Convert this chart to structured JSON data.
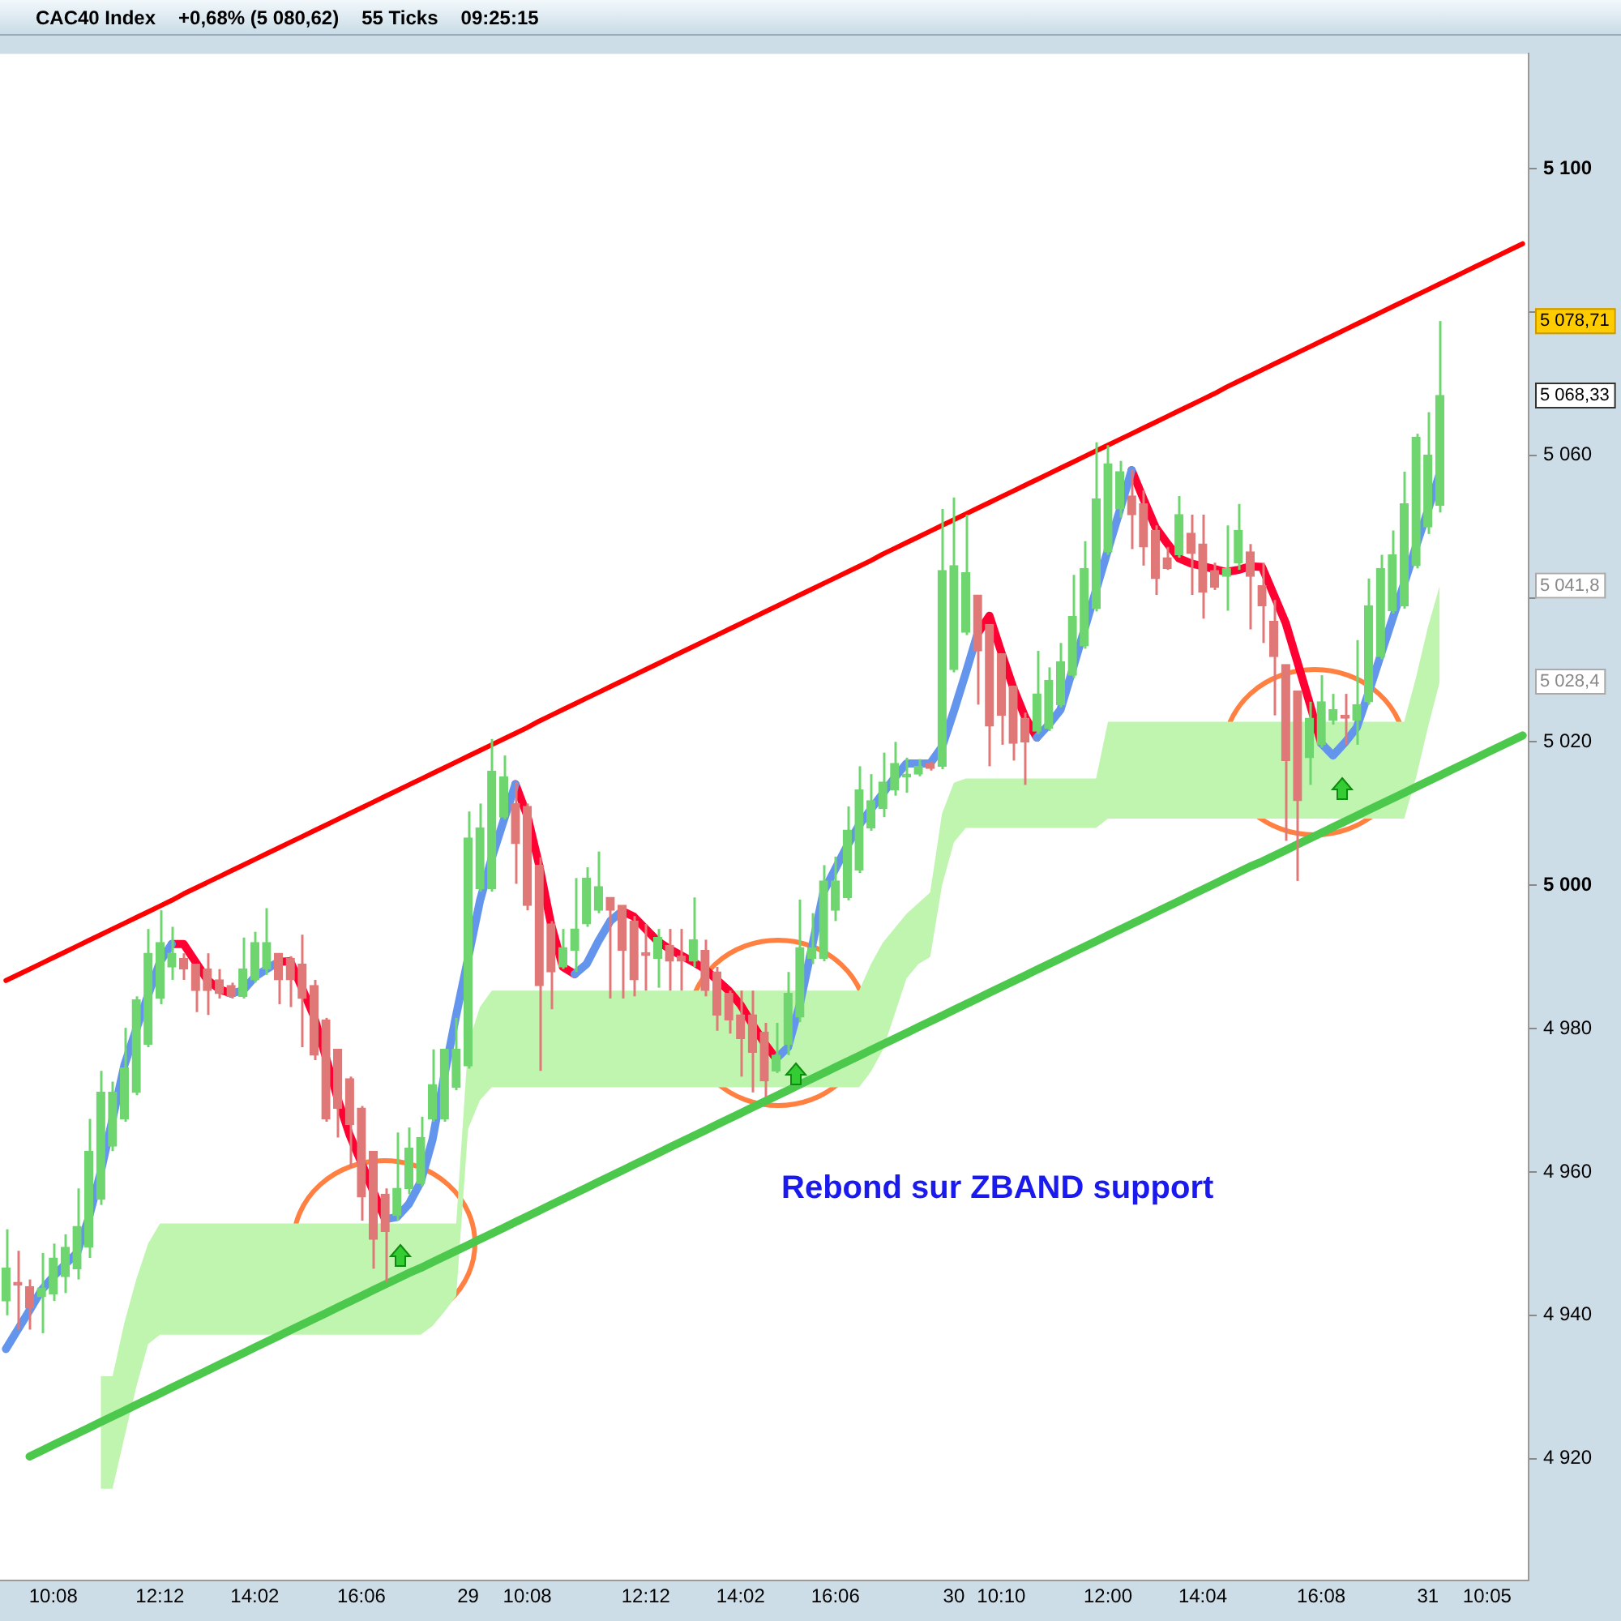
{
  "chart_data": {
    "type": "candlestick",
    "title": "CAC40 Index",
    "subtitle": "+0,68% (5 080,62)",
    "annotations": [
      "55 Ticks",
      "09:25:15",
      "Rebond sur ZBAND support",
      "5 078,71",
      "5 068,33",
      "5 041,8",
      "5 028,4"
    ],
    "categories": [
      null,
      null,
      null,
      null,
      "10:08",
      null,
      null,
      null,
      null,
      null,
      null,
      null,
      null,
      "12:12",
      null,
      null,
      null,
      null,
      null,
      null,
      null,
      "14:02",
      null,
      null,
      null,
      null,
      null,
      null,
      null,
      null,
      "16:06",
      null,
      null,
      null,
      null,
      null,
      null,
      null,
      null,
      "29",
      null,
      null,
      null,
      null,
      "10:08",
      null,
      null,
      null,
      null,
      null,
      null,
      null,
      null,
      null,
      "12:12",
      null,
      null,
      null,
      null,
      null,
      null,
      null,
      "14:02",
      null,
      null,
      null,
      null,
      null,
      null,
      null,
      "16:06",
      null,
      null,
      null,
      null,
      null,
      null,
      null,
      null,
      null,
      "30",
      null,
      null,
      null,
      "10:10",
      null,
      null,
      null,
      null,
      null,
      null,
      null,
      null,
      "12:00",
      null,
      null,
      null,
      null,
      null,
      null,
      null,
      "14:04",
      null,
      null,
      null,
      null,
      null,
      null,
      null,
      null,
      null,
      "16:08",
      null,
      null,
      null,
      null,
      null,
      null,
      null,
      null,
      "31",
      null,
      null,
      null,
      null,
      "10:05",
      null,
      null,
      null
    ],
    "ohlc": [
      [
        4942,
        4952,
        4940,
        4946.6
      ],
      [
        4944.6,
        4949,
        4938,
        4944.2
      ],
      [
        4944,
        4945,
        4938,
        4941
      ],
      [
        4942.6,
        4948.7,
        4937.5,
        4943.8
      ],
      [
        4943,
        4950,
        4942,
        4948
      ],
      [
        4945.4,
        4951.3,
        4943.1,
        4949.5
      ],
      [
        4946.5,
        4957.7,
        4945,
        4952.4
      ],
      [
        4949.5,
        4967.4,
        4948,
        4962.9
      ],
      [
        4956.2,
        4974.1,
        4955.4,
        4971.1
      ],
      [
        4963.6,
        4972.6,
        4962.9,
        4971.1
      ],
      [
        4967.4,
        4980.1,
        4967,
        4974.5
      ],
      [
        4971.1,
        4984.5,
        4970.7,
        4984
      ],
      [
        4977.8,
        4993.9,
        4977.4,
        4990.5
      ],
      [
        4984.2,
        4996.5,
        4983.4,
        4992
      ],
      [
        4988.6,
        4994.2,
        4986.8,
        4990.5
      ],
      [
        4989.8,
        4990.5,
        4986.8,
        4988.3
      ],
      [
        4989,
        4989,
        4982.3,
        4985.3
      ],
      [
        4988.3,
        4990.5,
        4981.9,
        4985.3
      ],
      [
        4986.8,
        4988.3,
        4984.2,
        4984.9
      ],
      [
        4986,
        4986.4,
        4984.2,
        4984.5
      ],
      [
        4984.5,
        4992.7,
        4984.2,
        4988.3
      ],
      [
        4986.8,
        4993.5,
        4986.4,
        4992
      ],
      [
        4988.3,
        4996.8,
        4987.5,
        4992
      ],
      [
        4990.5,
        4990.5,
        4983.4,
        4986.8
      ],
      [
        4989.8,
        4990.1,
        4983,
        4986.8
      ],
      [
        4989,
        4993.1,
        4977.4,
        4984.2
      ],
      [
        4986,
        4986.8,
        4975.6,
        4976.3
      ],
      [
        4981.2,
        4981.5,
        4967,
        4967.4
      ],
      [
        4977.1,
        4977.1,
        4964.8,
        4968.9
      ],
      [
        4973,
        4973.3,
        4960.6,
        4966.6
      ],
      [
        4968.9,
        4969.2,
        4953.2,
        4956.5
      ],
      [
        4962.9,
        4962.9,
        4946.5,
        4950.6
      ],
      [
        4956.9,
        4957.7,
        4944.6,
        4951.7
      ],
      [
        4953.9,
        4965.5,
        4953.2,
        4957.7
      ],
      [
        4957.7,
        4966.2,
        4956.9,
        4963.3
      ],
      [
        4958.4,
        4967.7,
        4958,
        4964.8
      ],
      [
        4967.4,
        4977.1,
        4967,
        4972.2
      ],
      [
        4967.4,
        4977.1,
        4967,
        4977.1
      ],
      [
        4971.8,
        4981.5,
        4971.4,
        4977.1
      ],
      [
        4974.8,
        5010.3,
        4974.4,
        5006.6
      ],
      [
        4999.5,
        5011.4,
        4999.1,
        5008
      ],
      [
        4999.5,
        5020.4,
        4999.1,
        5015.9
      ],
      [
        5009.5,
        5018.1,
        5009.2,
        5015.1
      ],
      [
        5011.4,
        5014.4,
        5000.2,
        5005.8
      ],
      [
        5011,
        5011.4,
        4996.5,
        4997.2
      ],
      [
        5002.8,
        5003.9,
        4974.1,
        4986
      ],
      [
        4994.6,
        4995,
        4982.7,
        4987.9
      ],
      [
        4988.6,
        4993.9,
        4988.3,
        4991.3
      ],
      [
        4990.9,
        5001,
        4987.9,
        4993.9
      ],
      [
        4994.6,
        5002.5,
        4994.2,
        5001
      ],
      [
        4996.5,
        5004.7,
        4996.1,
        4999.8
      ],
      [
        4998.3,
        4998.3,
        4984.2,
        4996.5
      ],
      [
        4997.2,
        4997.2,
        4984.2,
        4990.9
      ],
      [
        4995,
        4995.7,
        4984.5,
        4986.8
      ],
      [
        4990.6,
        4994.6,
        4985.3,
        4990.2
      ],
      [
        4989.8,
        4993.9,
        4985.7,
        4992.7
      ],
      [
        4991.6,
        4993.9,
        4985.3,
        4989.4
      ],
      [
        4990.1,
        4993.9,
        4985.3,
        4989.4
      ],
      [
        4989.4,
        4998.3,
        4988.6,
        4992.4
      ],
      [
        4990.9,
        4992.4,
        4984.5,
        4985.3
      ],
      [
        4987.9,
        4988.6,
        4979.7,
        4981.9
      ],
      [
        4984.9,
        4985.3,
        4979.3,
        4981.2
      ],
      [
        4981.9,
        4985.3,
        4973.3,
        4978.6
      ],
      [
        4981.9,
        4985.3,
        4971.1,
        4976.7
      ],
      [
        4979.5,
        4980.8,
        4970.4,
        4972.7
      ],
      [
        4974.1,
        4980.8,
        4973.8,
        4976.3
      ],
      [
        4977.8,
        4987.9,
        4976.3,
        4984.9
      ],
      [
        4981.6,
        4998,
        4980.9,
        4991.3
      ],
      [
        4989.8,
        4996.1,
        4989,
        4991.3
      ],
      [
        4989.8,
        5002.8,
        4989.4,
        5000.6
      ],
      [
        4996.5,
        5004,
        4995,
        5000.6
      ],
      [
        4998.3,
        5011,
        4997.9,
        5007.7
      ],
      [
        5002.1,
        5016.6,
        5001.7,
        5013.3
      ],
      [
        5008,
        5015.5,
        5007.6,
        5011.8
      ],
      [
        5010.7,
        5018.5,
        5009.5,
        5014.4
      ],
      [
        5013.3,
        5020,
        5012.5,
        5017
      ],
      [
        5015.1,
        5017.8,
        5012.9,
        5015.5
      ],
      [
        5015.5,
        5017.6,
        5015.2,
        5016.6
      ],
      [
        5017,
        5017.2,
        5016,
        5016.3
      ],
      [
        5016.6,
        5052.5,
        5016.2,
        5043.9
      ],
      [
        5030.1,
        5054.1,
        5029.7,
        5044.6
      ],
      [
        5035.3,
        5051.7,
        5034.9,
        5043.6
      ],
      [
        5040.5,
        5040.5,
        5025.2,
        5032.7
      ],
      [
        5036.4,
        5036.4,
        5016.6,
        5022.2
      ],
      [
        5032.3,
        5032.3,
        5019.6,
        5023.7
      ],
      [
        5027.8,
        5027.8,
        5017.4,
        5019.8
      ],
      [
        5023.3,
        5024.1,
        5014,
        5020
      ],
      [
        5021.5,
        5032.7,
        5021.1,
        5026.7
      ],
      [
        5021.9,
        5030.4,
        5021.5,
        5028.6
      ],
      [
        5025.2,
        5033.8,
        5024.8,
        5031.2
      ],
      [
        5029.3,
        5043.3,
        5028.9,
        5037.5
      ],
      [
        5033.4,
        5048,
        5033,
        5044.2
      ],
      [
        5038.6,
        5061.8,
        5038.2,
        5053.9
      ],
      [
        5046.5,
        5061.4,
        5046.1,
        5058.8
      ],
      [
        5052.5,
        5059.2,
        5051.3,
        5057.7
      ],
      [
        5054.3,
        5058,
        5046.9,
        5051.7
      ],
      [
        5053.2,
        5055.1,
        5044.6,
        5047.2
      ],
      [
        5049.5,
        5050.2,
        5040.5,
        5042.8
      ],
      [
        5045.7,
        5047.2,
        5044,
        5044.2
      ],
      [
        5046.1,
        5054.3,
        5045.7,
        5051.7
      ],
      [
        5049.1,
        5051.7,
        5040.5,
        5046.3
      ],
      [
        5047.6,
        5051.7,
        5037.2,
        5040.9
      ],
      [
        5043.9,
        5045,
        5041.2,
        5041.6
      ],
      [
        5043.1,
        5050.2,
        5038.3,
        5044.2
      ],
      [
        5045,
        5053.2,
        5044,
        5049.5
      ],
      [
        5046.5,
        5047.6,
        5035.7,
        5043.1
      ],
      [
        5041.8,
        5045,
        5033.8,
        5039
      ],
      [
        5036.8,
        5039.8,
        5023.7,
        5031.9
      ],
      [
        5030.8,
        5030.8,
        5006.2,
        5017.4
      ],
      [
        5027.1,
        5027.1,
        5000.6,
        5011.8
      ],
      [
        5017.8,
        5025.6,
        5014,
        5023.3
      ],
      [
        5019.6,
        5029.3,
        5019.2,
        5025.6
      ],
      [
        5023,
        5026.7,
        5022.4,
        5024.5
      ],
      [
        5023.7,
        5026.7,
        5019.6,
        5023.3
      ],
      [
        5023,
        5034.2,
        5019.6,
        5025.2
      ],
      [
        5025.6,
        5042.8,
        5025.2,
        5039
      ],
      [
        5031.9,
        5046.1,
        5031.5,
        5044.2
      ],
      [
        5038.3,
        5049.5,
        5037.9,
        5046.1
      ],
      [
        5039,
        5057.7,
        5038.6,
        5053.2
      ],
      [
        5044.6,
        5063,
        5044.2,
        5062.5
      ],
      [
        5050,
        5066,
        5049,
        5060
      ],
      [
        5053,
        5078.71,
        5052,
        5068.33
      ],
      null,
      null,
      null,
      null,
      null,
      null,
      null
    ],
    "colors": [
      "#6fd66f",
      "#e07878",
      "#e07878",
      "#6fd66f",
      "#6fd66f",
      "#6fd66f",
      "#6fd66f",
      "#6fd66f",
      "#6fd66f",
      "#6fd66f",
      "#6fd66f",
      "#6fd66f",
      "#6fd66f",
      "#6fd66f",
      "#6fd66f",
      "#e07878",
      "#e07878",
      "#e07878",
      "#e07878",
      "#e07878",
      "#6fd66f",
      "#6fd66f",
      "#6fd66f",
      "#e07878",
      "#e07878",
      "#e07878",
      "#e07878",
      "#e07878",
      "#e07878",
      "#e07878",
      "#e07878",
      "#e07878",
      "#e07878",
      "#6fd66f",
      "#6fd66f",
      "#6fd66f",
      "#6fd66f",
      "#6fd66f",
      "#6fd66f",
      "#6fd66f",
      "#6fd66f",
      "#6fd66f",
      "#6fd66f",
      "#e07878",
      "#e07878",
      "#e07878",
      "#e07878",
      "#6fd66f",
      "#6fd66f",
      "#6fd66f",
      "#6fd66f",
      "#e07878",
      "#e07878",
      "#e07878",
      "#e07878",
      "#6fd66f",
      "#e07878",
      "#e07878",
      "#6fd66f",
      "#e07878",
      "#e07878",
      "#e07878",
      "#e07878",
      "#e07878",
      "#e07878",
      "#6fd66f",
      "#6fd66f",
      "#6fd66f",
      "#6fd66f",
      "#6fd66f",
      "#6fd66f",
      "#6fd66f",
      "#6fd66f",
      "#6fd66f",
      "#6fd66f",
      "#6fd66f",
      "#6fd66f",
      "#6fd66f",
      "#e07878",
      "#6fd66f",
      "#6fd66f",
      "#6fd66f",
      "#e07878",
      "#e07878",
      "#e07878",
      "#e07878",
      "#e07878",
      "#6fd66f",
      "#6fd66f",
      "#6fd66f",
      "#6fd66f",
      "#6fd66f",
      "#6fd66f",
      "#6fd66f",
      "#6fd66f",
      "#e07878",
      "#e07878",
      "#e07878",
      "#e07878",
      "#6fd66f",
      "#e07878",
      "#e07878",
      "#e07878",
      "#6fd66f",
      "#6fd66f",
      "#e07878",
      "#e07878",
      "#e07878",
      "#e07878",
      "#e07878",
      "#6fd66f",
      "#6fd66f",
      "#6fd66f",
      "#e07878",
      "#6fd66f",
      "#6fd66f",
      "#6fd66f",
      "#6fd66f",
      "#6fd66f",
      "#6fd66f",
      "#6fd66f",
      "#6fd66f",
      null,
      null,
      null,
      null,
      null,
      null,
      null
    ],
    "series": [
      {
        "type": "area",
        "color": "#c0f5b0",
        "values": [
          null,
          null,
          null,
          null,
          null,
          null,
          null,
          null,
          null,
          null,
          null,
          null,
          null,
          null,
          null,
          null,
          null,
          null,
          null,
          null,
          null,
          null,
          null,
          null,
          null,
          null,
          null,
          null,
          null,
          null,
          null,
          null,
          null,
          null,
          null,
          null,
          null,
          null,
          null,
          null,
          null,
          null,
          null,
          null,
          null,
          null,
          null,
          null,
          null,
          null,
          null,
          null,
          null,
          null,
          null,
          null,
          null,
          null,
          null,
          null,
          null,
          null,
          null,
          null,
          null,
          null,
          null,
          null,
          null,
          null,
          null,
          null,
          null,
          null,
          null,
          null,
          null,
          null,
          null,
          null,
          null,
          null,
          null,
          null,
          null,
          null,
          null,
          null,
          null,
          null,
          null,
          null,
          null,
          null,
          null,
          null,
          null,
          null,
          null,
          null,
          null,
          null,
          null,
          null,
          null,
          null,
          null,
          null,
          null,
          null,
          null,
          null,
          null,
          null,
          null,
          null,
          null,
          null,
          null,
          null,
          null,
          null,
          null,
          null,
          null,
          null,
          null,
          null,
          null
        ],
        "lower": [
          null,
          null,
          null,
          null,
          null,
          null,
          null,
          null,
          4915.8,
          4915.8,
          4923,
          4930,
          4936,
          4937.3,
          4937.3,
          4937.3,
          4937.3,
          4937.3,
          4937.3,
          4937.3,
          4937.3,
          4937.3,
          4937.3,
          4937.3,
          4937.3,
          4937.3,
          4937.3,
          4937.3,
          4937.3,
          4937.3,
          4937.3,
          4937.3,
          4937.3,
          4937.3,
          4937.3,
          4937.3,
          4938.5,
          4940.5,
          4942.7,
          4966,
          4970,
          4971.8,
          4971.8,
          4971.8,
          4971.8,
          4971.8,
          4971.8,
          4971.8,
          4971.8,
          4971.8,
          4971.8,
          4971.8,
          4971.8,
          4971.8,
          4971.8,
          4971.8,
          4971.8,
          4971.8,
          4971.8,
          4971.8,
          4971.8,
          4971.8,
          4971.8,
          4971.8,
          4971.8,
          4971.8,
          4971.8,
          4971.8,
          4971.8,
          4971.8,
          4971.8,
          4971.8,
          4971.8,
          4974,
          4977,
          4982,
          4987,
          4989,
          4990,
          5000,
          5006,
          5008,
          5008,
          5008,
          5008,
          5008,
          5008,
          5008,
          5008,
          5008,
          5008,
          5008,
          5008,
          5009.3,
          5009.3,
          5009.3,
          5009.3,
          5009.3,
          5009.3,
          5009.3,
          5009.3,
          5009.3,
          5009.3,
          5009.3,
          5009.3,
          5009.3,
          5009.3,
          5009.3,
          5009.3,
          5009.3,
          5009.3,
          5009.3,
          5009.3,
          5009.3,
          5009.3,
          5009.3,
          5009.3,
          5009.3,
          5009.3,
          5015,
          5022,
          5028.4,
          null,
          null,
          null,
          null,
          null,
          null,
          null
        ],
        "upper": [
          null,
          null,
          null,
          null,
          null,
          null,
          null,
          null,
          4931.5,
          4931.5,
          4939,
          4945,
          4950,
          4952.8,
          4952.8,
          4952.8,
          4952.8,
          4952.8,
          4952.8,
          4952.8,
          4952.8,
          4952.8,
          4952.8,
          4952.8,
          4952.8,
          4952.8,
          4952.8,
          4952.8,
          4952.8,
          4952.8,
          4952.8,
          4952.8,
          4952.8,
          4952.8,
          4952.8,
          4952.8,
          4952.8,
          4952.8,
          4952.8,
          4977.8,
          4983,
          4985.3,
          4985.3,
          4985.3,
          4985.3,
          4985.3,
          4985.3,
          4985.3,
          4985.3,
          4985.3,
          4985.3,
          4985.3,
          4985.3,
          4985.3,
          4985.3,
          4985.3,
          4985.3,
          4985.3,
          4985.3,
          4985.3,
          4985.3,
          4985.3,
          4985.3,
          4985.3,
          4985.3,
          4985.3,
          4985.3,
          4985.3,
          4985.3,
          4985.3,
          4985.3,
          4985.3,
          4985.3,
          4989,
          4992,
          4994,
          4996,
          4997.5,
          4999,
          5010,
          5014.3,
          5014.9,
          5014.9,
          5014.9,
          5014.9,
          5014.9,
          5014.9,
          5014.9,
          5014.9,
          5014.9,
          5014.9,
          5014.9,
          5014.9,
          5022.8,
          5022.8,
          5022.8,
          5022.8,
          5022.8,
          5022.8,
          5022.8,
          5022.8,
          5022.8,
          5022.8,
          5022.8,
          5022.8,
          5022.8,
          5022.8,
          5022.8,
          5022.8,
          5022.8,
          5022.8,
          5022.8,
          5022.8,
          5022.8,
          5022.8,
          5022.8,
          5022.8,
          5022.8,
          5022.8,
          5029,
          5036,
          5041.8,
          null,
          null,
          null,
          null,
          null,
          null,
          null
        ]
      },
      {
        "type": "line",
        "color": "#ff0000",
        "values": [
          4986.7,
          4987.5,
          4988.3,
          4989.1,
          4989.9,
          4990.7,
          4991.5,
          4992.3,
          4993.1,
          4993.9,
          4994.7,
          4995.5,
          4996.3,
          4997.1,
          4997.9,
          4998.8,
          4999.6,
          5000.4,
          5001.2,
          5002,
          5002.8,
          5003.6,
          5004.4,
          5005.2,
          5006,
          5006.8,
          5007.6,
          5008.4,
          5009.2,
          5010,
          5010.8,
          5011.6,
          5012.4,
          5013.2,
          5014,
          5014.8,
          5015.6,
          5016.4,
          5017.2,
          5018,
          5018.8,
          5019.6,
          5020.4,
          5021.2,
          5022,
          5022.9,
          5023.7,
          5024.5,
          5025.3,
          5026.1,
          5026.9,
          5027.7,
          5028.5,
          5029.3,
          5030.1,
          5030.9,
          5031.7,
          5032.5,
          5033.3,
          5034.1,
          5034.9,
          5035.7,
          5036.5,
          5037.3,
          5038.1,
          5038.9,
          5039.7,
          5040.5,
          5041.3,
          5042.1,
          5042.9,
          5043.7,
          5044.5,
          5045.3,
          5046.2,
          5047,
          5047.8,
          5048.6,
          5049.4,
          5050.2,
          5051,
          5051.8,
          5052.6,
          5053.4,
          5054.2,
          5055,
          5055.8,
          5056.6,
          5057.4,
          5058.2,
          5059,
          5059.8,
          5060.6,
          5061.4,
          5062.2,
          5063,
          5063.8,
          5064.6,
          5065.4,
          5066.2,
          5067,
          5067.8,
          5068.6,
          5069.5,
          5070.3,
          5071.1,
          5071.9,
          5072.7,
          5073.5,
          5074.3,
          5075.1,
          5075.9,
          5076.7,
          5077.5,
          5078.3,
          5079.1,
          5079.9,
          5080.7,
          5081.5,
          5082.3,
          5083.1,
          5083.9,
          5084.7,
          5085.5,
          5086.3,
          5087.1,
          5087.9,
          5088.7,
          5089.5
        ]
      },
      {
        "type": "line",
        "color": "#4cc94c",
        "values": [
          null,
          null,
          4920.3,
          4921.1,
          4921.9,
          4922.7,
          4923.5,
          4924.3,
          4925.1,
          4925.9,
          4926.7,
          4927.5,
          4928.3,
          4929.1,
          4929.9,
          4930.7,
          4931.5,
          4932.3,
          4933.1,
          4933.9,
          4934.7,
          4935.5,
          4936.3,
          4937.1,
          4937.9,
          4938.7,
          4939.5,
          4940.3,
          4941.1,
          4941.9,
          4942.7,
          4943.5,
          4944.3,
          4945.1,
          4945.9,
          4946.6,
          4947.4,
          4948.2,
          4949,
          4949.8,
          4950.6,
          4951.4,
          4952.2,
          4953,
          4953.8,
          4954.6,
          4955.4,
          4956.2,
          4957,
          4957.8,
          4958.6,
          4959.4,
          4960.2,
          4961,
          4961.8,
          4962.6,
          4963.4,
          4964.2,
          4965,
          4965.8,
          4966.6,
          4967.4,
          4968.2,
          4969,
          4969.8,
          4970.6,
          4971.4,
          4972.2,
          4973,
          4973.8,
          4974.6,
          4975.4,
          4976.2,
          4977,
          4977.8,
          4978.6,
          4979.4,
          4980.2,
          4981,
          4981.8,
          4982.6,
          4983.4,
          4984.2,
          4985,
          4985.8,
          4986.6,
          4987.4,
          4988.2,
          4989,
          4989.8,
          4990.6,
          4991.4,
          4992.2,
          4993,
          4993.8,
          4994.6,
          4995.4,
          4996.2,
          4997,
          4997.8,
          4998.6,
          4999.4,
          5000.2,
          5001,
          5001.8,
          5002.6,
          5003.3,
          5004.1,
          5004.9,
          5005.7,
          5006.5,
          5007.3,
          5008.1,
          5008.9,
          5009.7,
          5010.5,
          5011.3,
          5012.1,
          5012.9,
          5013.7,
          5014.5,
          5015.3,
          5016.1,
          5016.9,
          5017.7,
          5018.5,
          5019.3,
          5020.1,
          5020.9
        ]
      },
      {
        "type": "line",
        "color": "#6495ed",
        "values": [
          4935.3,
          4938,
          4940.7,
          4943.5,
          4945.4,
          4947.1,
          4948.7,
          4953.6,
          4960,
          4967.4,
          4974.9,
          4979.9,
          4984.7,
          4989.3,
          4991.8,
          null,
          null,
          null,
          null,
          4984.9,
          4985.3,
          4987.2,
          4988.3,
          4989.3,
          null,
          null,
          null,
          null,
          null,
          null,
          null,
          null,
          4953.4,
          4953.7,
          4955.5,
          4958.6,
          4964.5,
          4973.5,
          4981.9,
          4989.8,
          4997.8,
          5003.8,
          5009,
          5014.1,
          null,
          null,
          null,
          null,
          4987.6,
          4989,
          4992.2,
          4995,
          4996.4,
          null,
          null,
          null,
          null,
          null,
          null,
          null,
          null,
          null,
          null,
          null,
          null,
          4975.8,
          4977.4,
          4983.4,
          4991.2,
          4999.1,
          5002.3,
          5005.5,
          5008.4,
          5010.6,
          5012.8,
          5015,
          5017,
          5017,
          5017,
          5019.3,
          5024.3,
          5029.6,
          5035.1,
          null,
          null,
          null,
          null,
          5020.6,
          5022.4,
          5024.5,
          5030,
          5035.6,
          5041.2,
          5046.8,
          5052.3,
          5057.9,
          null,
          null,
          null,
          null,
          null,
          null,
          null,
          null,
          null,
          null,
          null,
          null,
          null,
          null,
          null,
          5019.8,
          5018.1,
          5019.9,
          5022,
          5026.9,
          5032,
          5037.1,
          5042.1,
          5047.3,
          5052.3,
          5057.4,
          null,
          null,
          null,
          null,
          null,
          null,
          null
        ]
      },
      {
        "type": "line",
        "color": "#ff0033",
        "values": [
          null,
          null,
          null,
          null,
          null,
          null,
          null,
          null,
          null,
          null,
          null,
          null,
          null,
          null,
          4991.8,
          4991.8,
          4989.3,
          4986.8,
          4985.5,
          4984.9,
          null,
          null,
          null,
          4989.3,
          4989.4,
          4985.6,
          4981.7,
          4976,
          4970.2,
          4965.2,
          4961.3,
          4957.3,
          4953.4,
          null,
          null,
          null,
          null,
          null,
          null,
          null,
          null,
          null,
          null,
          5014.1,
          5009.7,
          5002.8,
          4994.6,
          4988.6,
          4987.6,
          null,
          null,
          null,
          4996.4,
          4995.6,
          4993.9,
          4992.2,
          4991.1,
          4990.2,
          4989.3,
          4988.3,
          4986.8,
          4985.3,
          4983.3,
          4980.6,
          4978,
          4975.8,
          null,
          null,
          null,
          null,
          null,
          null,
          null,
          null,
          null,
          null,
          null,
          5017,
          5017,
          null,
          null,
          null,
          5035.1,
          5037.6,
          5032.5,
          5027.6,
          5023.5,
          5020.6,
          null,
          null,
          null,
          null,
          null,
          null,
          null,
          5057.9,
          5053.9,
          5050,
          5047.7,
          5045.6,
          5044.9,
          5044.5,
          5044.1,
          5043.7,
          5044,
          5044.5,
          5044.4,
          5040.5,
          5036.6,
          5031.1,
          5025.5,
          5019.8,
          null,
          null,
          null,
          null,
          null,
          null,
          null,
          null,
          null,
          null,
          null,
          null,
          null,
          null,
          null,
          null,
          null
        ]
      }
    ],
    "ylim": [
      4903,
      5116
    ],
    "yticks": [
      {
        "value": 4920,
        "label": "4 920"
      },
      {
        "value": 4940,
        "label": "4 940"
      },
      {
        "value": 4960,
        "label": "4 960"
      },
      {
        "value": 4980,
        "label": "4 980"
      },
      {
        "value": 5000,
        "label": "5 000"
      },
      {
        "value": 5020,
        "label": "5 020"
      },
      {
        "value": 5040,
        "label": null
      },
      {
        "value": 5060,
        "label": "5 060"
      },
      {
        "value": 5080,
        "label": null
      },
      {
        "value": 5100,
        "label": "5 100"
      }
    ],
    "legend": false
  }
}
